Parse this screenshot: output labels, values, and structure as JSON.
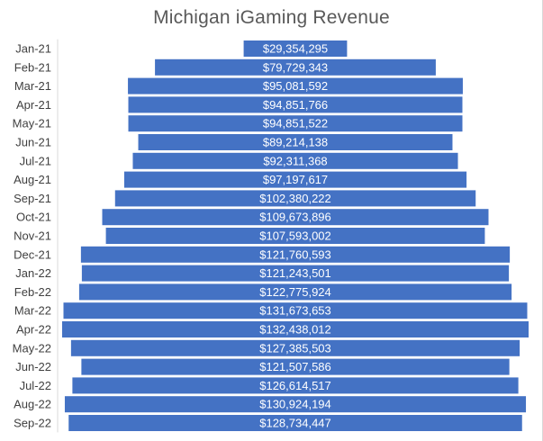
{
  "chart_data": {
    "type": "bar",
    "orientation": "horizontal",
    "layout": "centered funnel",
    "title": "Michigan iGaming Revenue",
    "xlabel": "",
    "ylabel": "",
    "grid": false,
    "legend": "none",
    "bar_color": "#4472c4",
    "value_label_color": "#ffffff",
    "categories": [
      "Jan-21",
      "Feb-21",
      "Mar-21",
      "Apr-21",
      "May-21",
      "Jun-21",
      "Jul-21",
      "Aug-21",
      "Sep-21",
      "Oct-21",
      "Nov-21",
      "Dec-21",
      "Jan-22",
      "Feb-22",
      "Mar-22",
      "Apr-22",
      "May-22",
      "Jun-22",
      "Jul-22",
      "Aug-22",
      "Sep-22"
    ],
    "values": [
      29354295,
      79729343,
      95081592,
      94851766,
      94851522,
      89214138,
      92311368,
      97197617,
      102380222,
      109673896,
      107593002,
      121760593,
      121243501,
      122775924,
      131673653,
      132438012,
      127385503,
      121507586,
      126614517,
      130924194,
      128734447
    ],
    "value_labels": [
      "$29,354,295",
      "$79,729,343",
      "$95,081,592",
      "$94,851,766",
      "$94,851,522",
      "$89,214,138",
      "$92,311,368",
      "$97,197,617",
      "$102,380,222",
      "$109,673,896",
      "$107,593,002",
      "$121,760,593",
      "$121,243,501",
      "$122,775,924",
      "$131,673,653",
      "$132,438,012",
      "$127,385,503",
      "$121,507,586",
      "$126,614,517",
      "$130,924,194",
      "$128,734,447"
    ]
  }
}
